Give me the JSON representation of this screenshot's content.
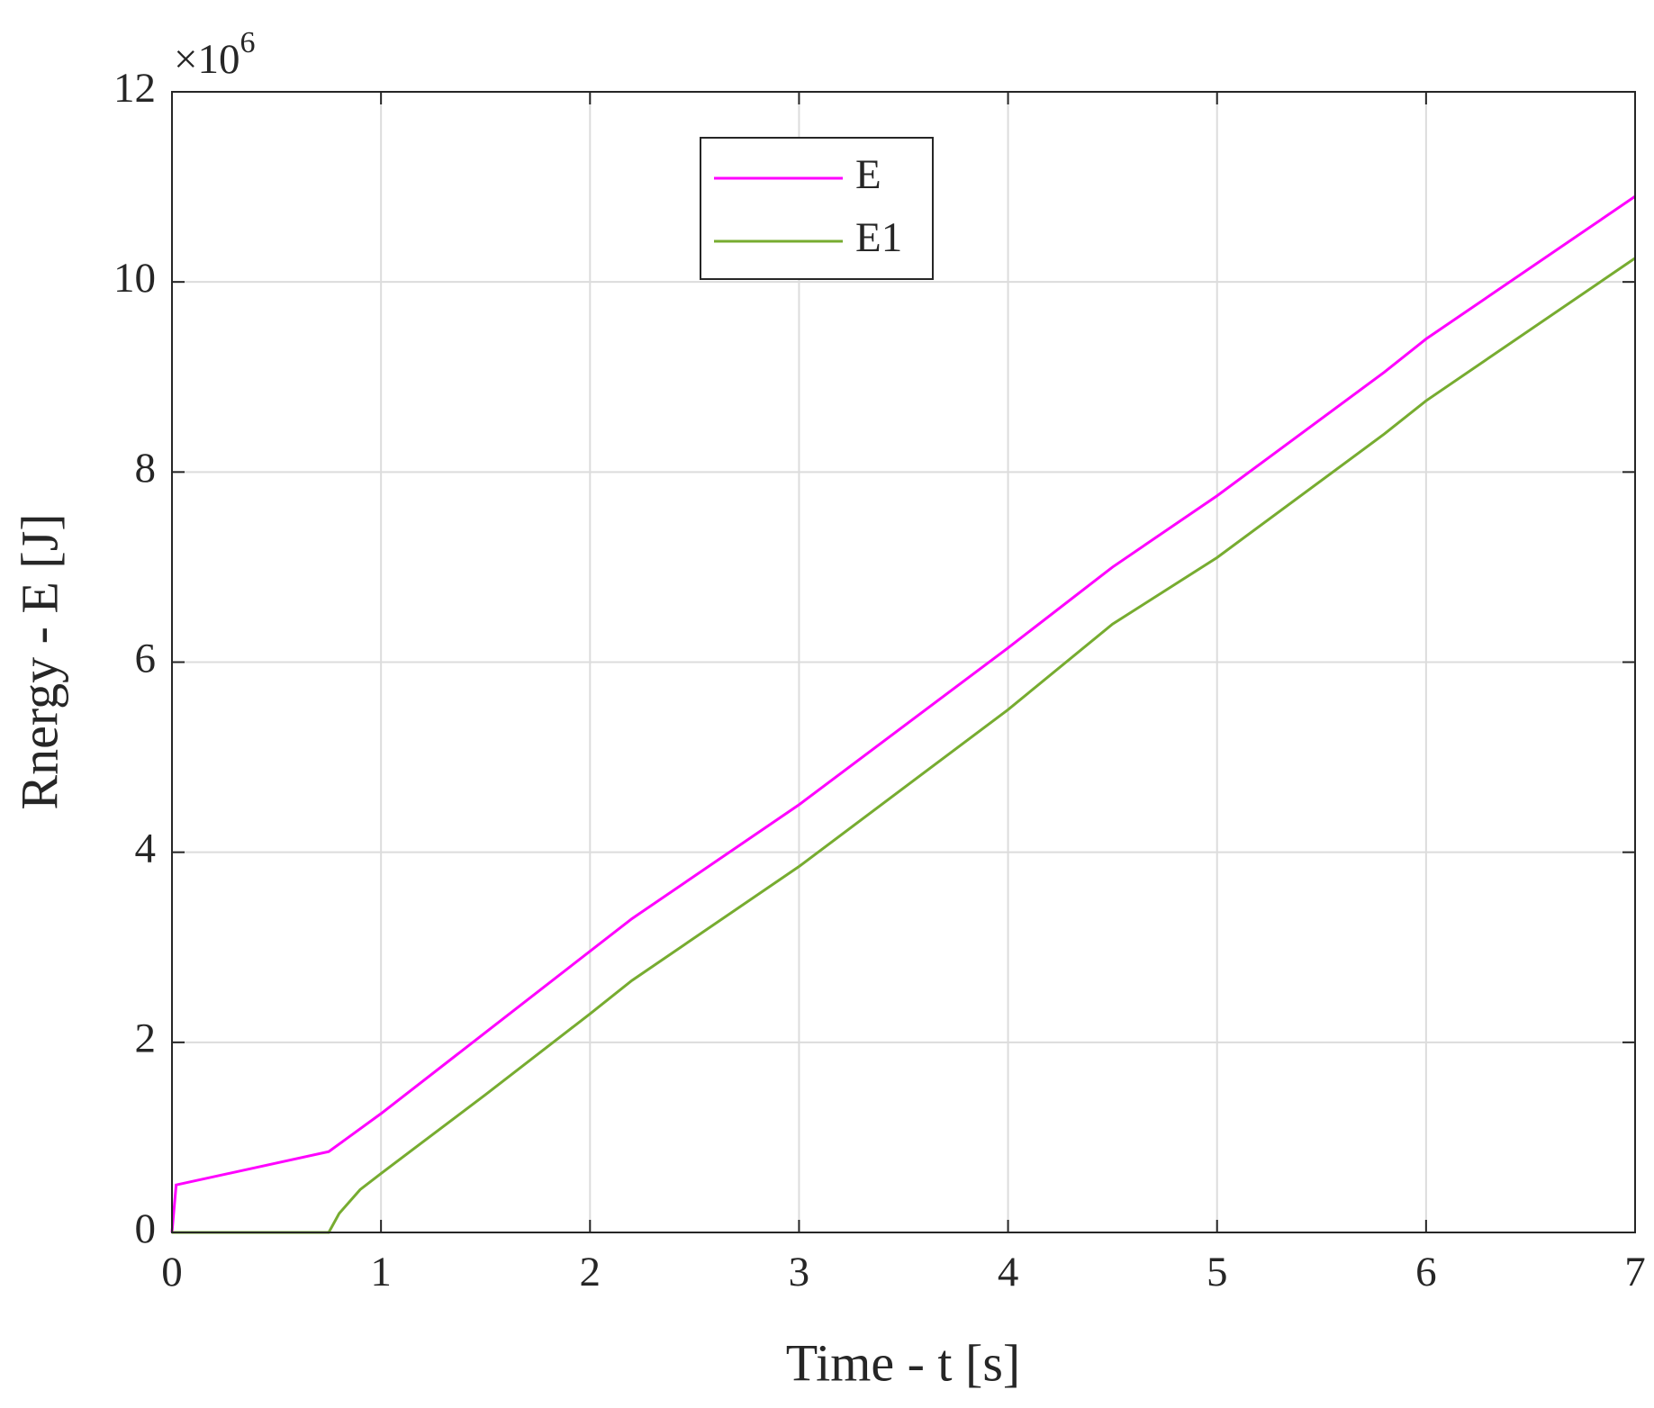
{
  "chart_data": {
    "type": "line",
    "xlabel": "Time - t [s]",
    "ylabel": "Rnergy - E [J]",
    "y_multiplier": {
      "base": "×10",
      "exponent": "6"
    },
    "xlim": [
      0,
      7
    ],
    "xticks": [
      0,
      1,
      2,
      3,
      4,
      5,
      6,
      7
    ],
    "ylim": [
      0,
      12
    ],
    "yticks": [
      0,
      2,
      4,
      6,
      8,
      10,
      12
    ],
    "grid": true,
    "legend": "top-center",
    "series": [
      {
        "name": "E",
        "color": "#ff00ff",
        "x": [
          0,
          0.02,
          0.75,
          1,
          2.2,
          3,
          4,
          4.5,
          5,
          5.8,
          6,
          7
        ],
        "values": [
          0,
          0.5,
          0.85,
          1.25,
          3.3,
          4.5,
          6.15,
          7.0,
          7.75,
          9.05,
          9.4,
          10.9
        ]
      },
      {
        "name": "E1",
        "color": "#77ac30",
        "x": [
          0,
          0.75,
          0.8,
          0.9,
          1,
          1.5,
          2,
          2.2,
          3,
          4,
          4.5,
          5,
          5.8,
          6,
          7
        ],
        "values": [
          0,
          0,
          0.2,
          0.45,
          0.62,
          1.45,
          2.3,
          2.65,
          3.85,
          5.5,
          6.4,
          7.1,
          8.4,
          8.75,
          10.25
        ]
      }
    ]
  }
}
